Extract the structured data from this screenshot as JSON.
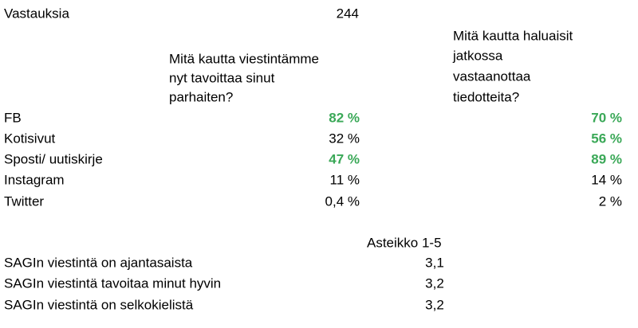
{
  "summary": {
    "label": "Vastauksia",
    "value": "244"
  },
  "table": {
    "headers": [
      [
        "Mitä kautta viestintämme",
        "nyt tavoittaa sinut",
        "parhaiten?"
      ],
      [
        "Mitä kautta haluaisit",
        "jatkossa",
        "vastaanottaa",
        "tiedotteita?"
      ]
    ],
    "rows": [
      [
        "FB",
        "82 %",
        "70 %"
      ],
      [
        "Kotisivut",
        "32 %",
        "56 %"
      ],
      [
        "Sposti/ uutiskirje",
        "47 %",
        "89 %"
      ],
      [
        "Instagram",
        "11 %",
        "14 %"
      ],
      [
        "Twitter",
        "0,4 %",
        "2 %"
      ]
    ]
  },
  "scale": {
    "header": "Asteikko 1-5",
    "rows": [
      [
        "SAGIn viestintä on ajantasaista",
        "3,1"
      ],
      [
        "SAGIn viestintä tavoitaa minut hyvin",
        "3,2"
      ],
      [
        "SAGIn viestintä on selkokielistä",
        "3,2"
      ]
    ]
  }
}
